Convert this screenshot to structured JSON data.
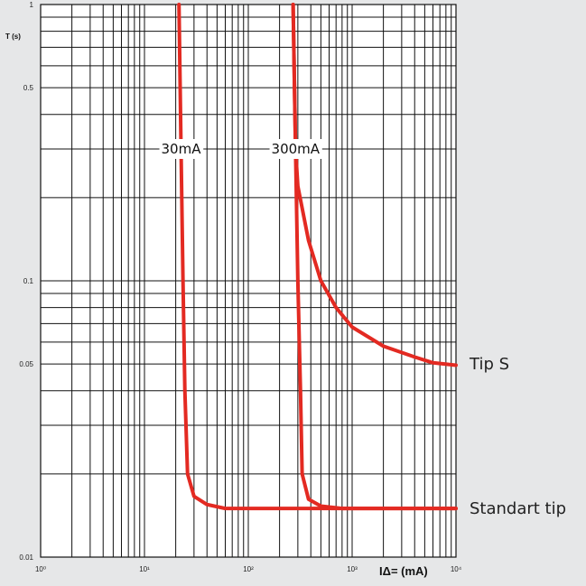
{
  "chart_data": {
    "type": "line",
    "ylabel": "T (s)",
    "xlabel": "IΔ= (mA)",
    "x_scale": "log",
    "y_scale": "log",
    "xlim": [
      1,
      10000
    ],
    "ylim": [
      0.01,
      1
    ],
    "grid": true,
    "x_ticks": [
      {
        "value": 1,
        "label": "10⁰"
      },
      {
        "value": 10,
        "label": "10¹"
      },
      {
        "value": 100,
        "label": "10²"
      },
      {
        "value": 1000,
        "label": "10³"
      },
      {
        "value": 10000,
        "label": "10⁴"
      }
    ],
    "y_ticks": [
      {
        "value": 1,
        "label": "1"
      },
      {
        "value": 0.5,
        "label": "0.5"
      },
      {
        "value": 0.1,
        "label": "0.1"
      },
      {
        "value": 0.05,
        "label": "0.05"
      },
      {
        "value": 0.01,
        "label": "0.01"
      }
    ],
    "line_color": "#e32a22",
    "series": [
      {
        "points": [
          [
            21.5,
            1
          ],
          [
            22.5,
            0.3
          ],
          [
            23.5,
            0.1
          ],
          [
            24.5,
            0.04
          ],
          [
            26,
            0.02
          ],
          [
            30,
            0.0166
          ],
          [
            40,
            0.0155
          ],
          [
            60,
            0.015
          ],
          [
            100,
            0.015
          ],
          [
            1000,
            0.015
          ],
          [
            10000,
            0.015
          ]
        ]
      },
      {
        "points": [
          [
            270,
            1
          ],
          [
            285,
            0.3
          ],
          [
            300,
            0.1
          ],
          [
            318,
            0.04
          ],
          [
            330,
            0.02
          ],
          [
            380,
            0.0162
          ],
          [
            500,
            0.0153
          ],
          [
            800,
            0.015
          ],
          [
            2000,
            0.015
          ],
          [
            10000,
            0.015
          ]
        ]
      },
      {
        "points": [
          [
            270,
            1
          ],
          [
            285,
            0.3
          ],
          [
            300,
            0.22
          ],
          [
            380,
            0.14
          ],
          [
            500,
            0.1
          ],
          [
            700,
            0.08
          ],
          [
            1000,
            0.068
          ],
          [
            2000,
            0.058
          ],
          [
            4000,
            0.053
          ],
          [
            6000,
            0.0505
          ],
          [
            10000,
            0.0495
          ]
        ]
      }
    ],
    "annotations": [
      {
        "text": "30mA",
        "x": 22.5,
        "y": 0.3
      },
      {
        "text": "300mA",
        "x": 285,
        "y": 0.3
      }
    ],
    "side_labels": [
      {
        "text": "Tip S",
        "y": 0.05
      },
      {
        "text": "Standart tip",
        "y": 0.015
      }
    ]
  }
}
